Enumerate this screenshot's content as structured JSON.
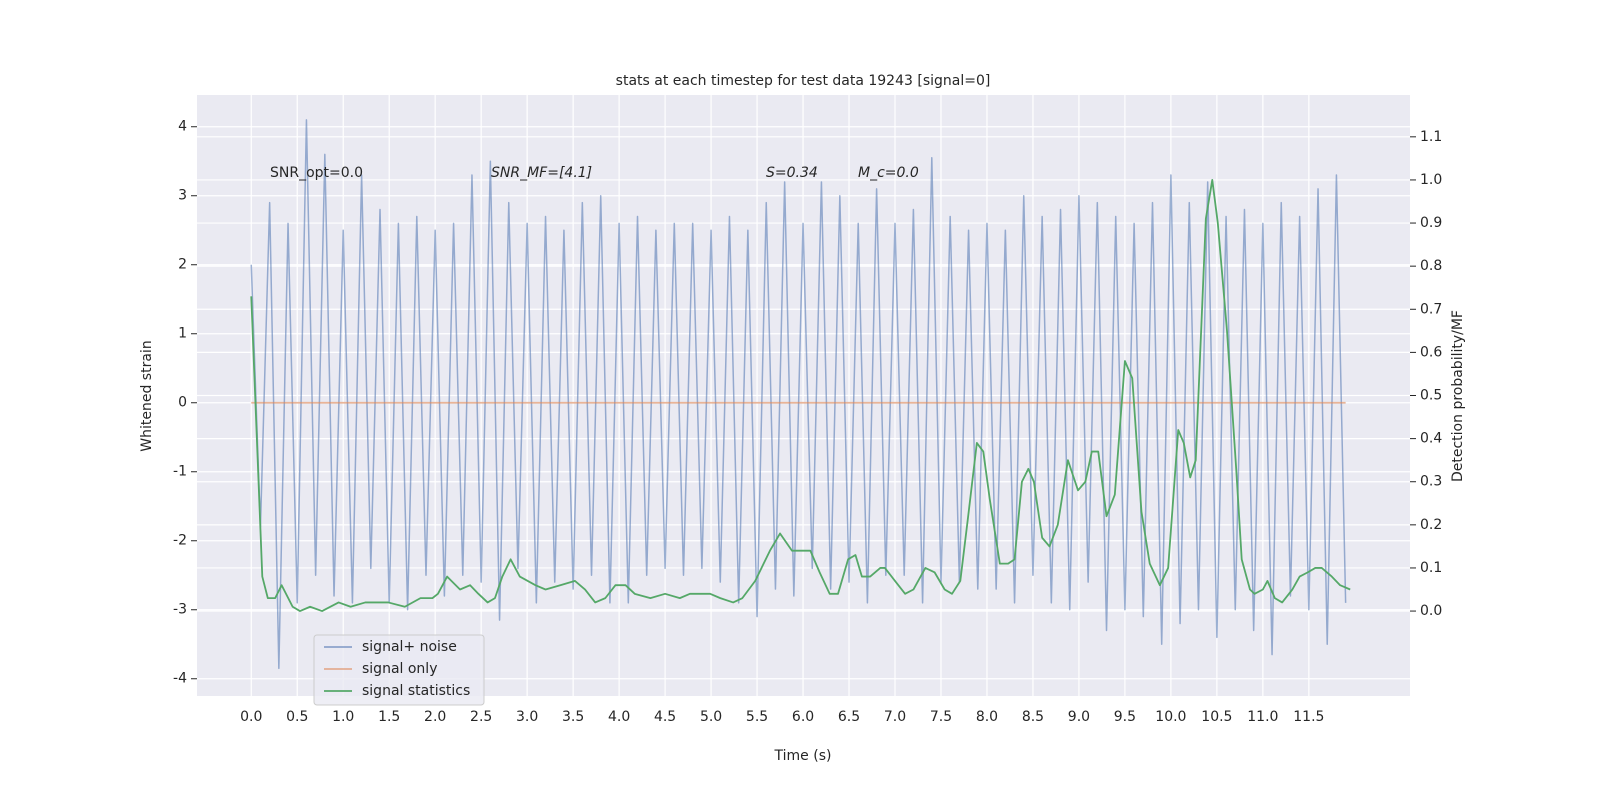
{
  "chart_data": {
    "type": "line",
    "title": "stats at each timestep for test data 19243 [signal=0]",
    "xlabel": "Time (s)",
    "ylabel": "Whitened strain",
    "y2label": "Detection probability/MF",
    "annotations": [
      "SNR_opt=0.0",
      "SNR_MF=[4.1]",
      "S=0.34",
      "M_c=0.0"
    ],
    "xlim": [
      -0.59,
      12.6
    ],
    "xticks": [
      {
        "value": 0,
        "label": "0.0"
      },
      0.5,
      {
        "value": 1,
        "label": "1.0"
      },
      1.5,
      {
        "value": 2,
        "label": "2.0"
      },
      2.5,
      {
        "value": 3,
        "label": "3.0"
      },
      3.5,
      {
        "value": 4,
        "label": "4.0"
      },
      4.5,
      {
        "value": 5,
        "label": "5.0"
      },
      5.5,
      {
        "value": 6,
        "label": "6.0"
      },
      6.5,
      {
        "value": 7,
        "label": "7.0"
      },
      7.5,
      {
        "value": 8,
        "label": "8.0"
      },
      8.5,
      {
        "value": 9,
        "label": "9.0"
      },
      9.5,
      {
        "value": 10,
        "label": "10.0"
      },
      10.5,
      {
        "value": 11,
        "label": "11.0"
      },
      11.5
    ],
    "ylim": [
      -4.25,
      4.46
    ],
    "yticks": [
      -4,
      -3,
      -2,
      -1,
      0,
      1,
      2,
      3,
      4
    ],
    "y2lim": [
      -0.197,
      1.197
    ],
    "y2ticks": [
      {
        "value": 0,
        "label": "0.0"
      },
      0.1,
      0.2,
      0.3,
      0.4,
      0.5,
      0.6,
      0.7,
      0.8,
      0.9,
      {
        "value": 1,
        "label": "1.0"
      },
      1.1
    ],
    "grid": true,
    "legend_loc": "lower left",
    "series": [
      {
        "name": "signal+ noise",
        "color": "#4c72b0",
        "x": [
          0.0,
          0.1,
          0.2,
          0.3,
          0.4,
          0.5,
          0.6,
          0.7,
          0.8,
          0.9,
          1.0,
          1.1,
          1.2,
          1.3,
          1.4,
          1.5,
          1.6,
          1.7,
          1.8,
          1.9,
          2.0,
          2.1,
          2.2,
          2.3,
          2.4,
          2.5,
          2.6,
          2.7,
          2.8,
          2.9,
          3.0,
          3.1,
          3.2,
          3.3,
          3.4,
          3.5,
          3.6,
          3.7,
          3.8,
          3.9,
          4.0,
          4.1,
          4.2,
          4.3,
          4.4,
          4.5,
          4.6,
          4.7,
          4.8,
          4.9,
          5.0,
          5.1,
          5.2,
          5.3,
          5.4,
          5.5,
          5.6,
          5.7,
          5.8,
          5.9,
          6.0,
          6.1,
          6.2,
          6.3,
          6.4,
          6.5,
          6.6,
          6.7,
          6.8,
          6.9,
          7.0,
          7.1,
          7.2,
          7.3,
          7.4,
          7.5,
          7.6,
          7.7,
          7.8,
          7.9,
          8.0,
          8.1,
          8.2,
          8.3,
          8.4,
          8.5,
          8.6,
          8.7,
          8.8,
          8.9,
          9.0,
          9.1,
          9.2,
          9.3,
          9.4,
          9.5,
          9.6,
          9.7,
          9.8,
          9.9,
          10.0,
          10.1,
          10.2,
          10.3,
          10.4,
          10.5,
          10.6,
          10.7,
          10.8,
          10.9,
          11.0,
          11.1,
          11.2,
          11.3,
          11.4,
          11.5,
          11.6,
          11.7,
          11.8,
          11.9
        ],
        "values": [
          2.0,
          -1.8,
          2.9,
          -3.85,
          2.6,
          -2.9,
          4.1,
          -2.5,
          3.6,
          -2.8,
          2.5,
          -2.9,
          3.3,
          -2.4,
          2.8,
          -2.9,
          2.6,
          -3.0,
          2.7,
          -2.5,
          2.5,
          -2.8,
          2.6,
          -2.5,
          3.3,
          -2.6,
          3.5,
          -3.15,
          2.9,
          -2.4,
          2.6,
          -2.9,
          2.7,
          -2.6,
          2.5,
          -2.7,
          2.9,
          -2.5,
          3.0,
          -2.9,
          2.6,
          -2.9,
          2.7,
          -2.5,
          2.5,
          -2.4,
          2.6,
          -2.5,
          2.6,
          -2.4,
          2.5,
          -2.6,
          2.7,
          -2.9,
          2.5,
          -3.1,
          2.9,
          -2.7,
          3.2,
          -2.8,
          2.6,
          -2.4,
          3.2,
          -2.7,
          3.0,
          -2.6,
          2.6,
          -2.9,
          3.1,
          -2.5,
          2.6,
          -2.5,
          2.8,
          -2.9,
          3.55,
          -2.6,
          2.7,
          -2.6,
          2.5,
          -2.7,
          2.6,
          -2.7,
          2.5,
          -2.9,
          3.0,
          -2.5,
          2.7,
          -2.9,
          2.8,
          -3.0,
          3.0,
          -2.6,
          2.9,
          -3.3,
          2.7,
          -3.0,
          2.6,
          -3.1,
          2.9,
          -3.5,
          3.3,
          -3.2,
          2.9,
          -3.0,
          3.2,
          -3.4,
          2.7,
          -3.0,
          2.8,
          -3.3,
          2.6,
          -3.65,
          2.9,
          -2.8,
          2.7,
          -3.0,
          3.1,
          -3.5,
          3.3,
          -2.9
        ]
      },
      {
        "name": "signal only",
        "color": "#dd8452",
        "x": [
          0.0,
          11.9
        ],
        "values": [
          0,
          0
        ]
      },
      {
        "name": "signal statistics",
        "color": "#55a868",
        "axis": "y2",
        "x": [
          0.0,
          0.12,
          0.18,
          0.26,
          0.33,
          0.45,
          0.53,
          0.64,
          0.77,
          0.95,
          1.08,
          1.24,
          1.4,
          1.49,
          1.67,
          1.84,
          1.97,
          2.03,
          2.13,
          2.27,
          2.38,
          2.47,
          2.57,
          2.65,
          2.73,
          2.82,
          2.92,
          3.09,
          3.2,
          3.36,
          3.52,
          3.63,
          3.74,
          3.85,
          3.96,
          4.07,
          4.17,
          4.34,
          4.5,
          4.66,
          4.77,
          4.99,
          5.1,
          5.24,
          5.34,
          5.48,
          5.64,
          5.75,
          5.88,
          5.97,
          6.08,
          6.18,
          6.29,
          6.38,
          6.49,
          6.57,
          6.64,
          6.73,
          6.84,
          6.89,
          7.0,
          7.11,
          7.2,
          7.33,
          7.43,
          7.54,
          7.62,
          7.71,
          7.79,
          7.89,
          7.96,
          8.03,
          8.14,
          8.23,
          8.3,
          8.38,
          8.45,
          8.51,
          8.6,
          8.68,
          8.77,
          8.88,
          8.99,
          9.07,
          9.14,
          9.21,
          9.3,
          9.39,
          9.5,
          9.58,
          9.68,
          9.77,
          9.88,
          9.97,
          10.08,
          10.14,
          10.21,
          10.27,
          10.38,
          10.45,
          10.51,
          10.61,
          10.71,
          10.77,
          10.86,
          10.91,
          11.0,
          11.05,
          11.13,
          11.21,
          11.32,
          11.4,
          11.49,
          11.57,
          11.64,
          11.75,
          11.84,
          11.95
        ],
        "values": [
          0.73,
          0.08,
          0.03,
          0.03,
          0.06,
          0.01,
          0.0,
          0.01,
          0.0,
          0.02,
          0.01,
          0.02,
          0.02,
          0.02,
          0.01,
          0.03,
          0.03,
          0.04,
          0.08,
          0.05,
          0.06,
          0.04,
          0.02,
          0.03,
          0.08,
          0.12,
          0.08,
          0.06,
          0.05,
          0.06,
          0.07,
          0.05,
          0.02,
          0.03,
          0.06,
          0.06,
          0.04,
          0.03,
          0.04,
          0.03,
          0.04,
          0.04,
          0.03,
          0.02,
          0.03,
          0.07,
          0.14,
          0.18,
          0.14,
          0.14,
          0.14,
          0.09,
          0.04,
          0.04,
          0.12,
          0.13,
          0.08,
          0.08,
          0.1,
          0.1,
          0.07,
          0.04,
          0.05,
          0.1,
          0.09,
          0.05,
          0.04,
          0.07,
          0.21,
          0.39,
          0.37,
          0.26,
          0.11,
          0.11,
          0.12,
          0.3,
          0.33,
          0.3,
          0.17,
          0.15,
          0.2,
          0.35,
          0.28,
          0.3,
          0.37,
          0.37,
          0.22,
          0.27,
          0.58,
          0.54,
          0.23,
          0.11,
          0.06,
          0.1,
          0.42,
          0.39,
          0.31,
          0.35,
          0.91,
          1.0,
          0.9,
          0.65,
          0.33,
          0.12,
          0.05,
          0.04,
          0.05,
          0.07,
          0.03,
          0.02,
          0.05,
          0.08,
          0.09,
          0.1,
          0.1,
          0.08,
          0.06,
          0.05
        ]
      }
    ]
  }
}
